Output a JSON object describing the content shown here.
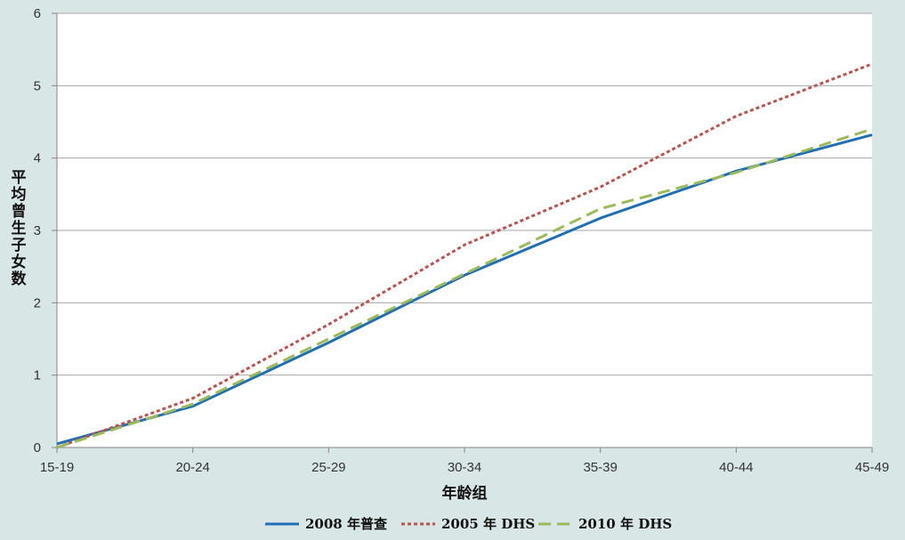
{
  "chart_data": {
    "type": "line",
    "categories": [
      "15-19",
      "20-24",
      "25-29",
      "30-34",
      "35-39",
      "40-44",
      "45-49"
    ],
    "ylim": [
      0,
      6
    ],
    "yticks": [
      0,
      1,
      2,
      3,
      4,
      5,
      6
    ],
    "xlabel": "年龄组",
    "ylabel": "平均曾生子女数",
    "grid": true,
    "legend_position": "bottom",
    "series": [
      {
        "name": "2008 年普查",
        "color": "#1f6fb5",
        "dash": "solid",
        "values": [
          0.05,
          0.57,
          1.45,
          2.38,
          3.17,
          3.82,
          4.32
        ]
      },
      {
        "name": "2005 年 DHS",
        "color": "#c0504d",
        "dash": "dotted",
        "values": [
          0.0,
          0.68,
          1.7,
          2.8,
          3.6,
          4.58,
          5.3
        ]
      },
      {
        "name": "2010 年 DHS",
        "color": "#9bbb59",
        "dash": "dashed",
        "values": [
          0.0,
          0.6,
          1.5,
          2.4,
          3.3,
          3.8,
          4.4
        ]
      }
    ]
  }
}
